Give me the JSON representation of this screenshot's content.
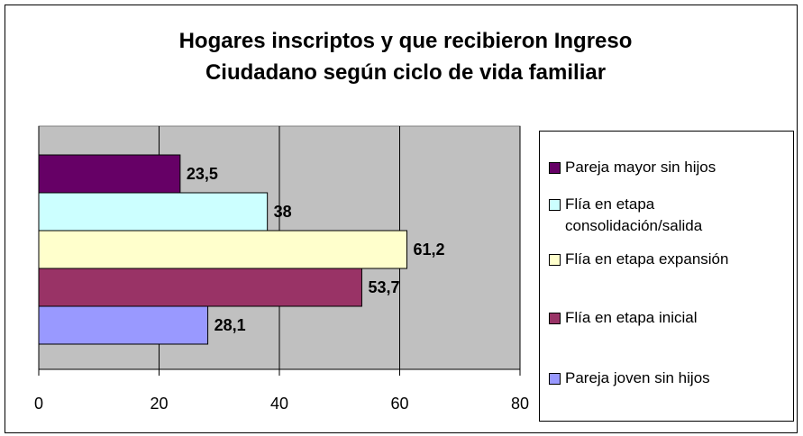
{
  "chart_data": {
    "type": "bar",
    "orientation": "horizontal",
    "title": "Hogares inscriptos y que recibieron Ingreso Ciudadano según ciclo de vida familiar",
    "series": [
      {
        "name": "Pareja mayor sin hijos",
        "color": "#660066",
        "values": [
          23.5
        ],
        "value_labels": [
          "23,5"
        ]
      },
      {
        "name": "Flía en etapa consolidación/salida",
        "color": "#CCFFFF",
        "values": [
          38
        ],
        "value_labels": [
          "38"
        ]
      },
      {
        "name": "Flía en etapa expansión",
        "color": "#FFFFCC",
        "values": [
          61.2
        ],
        "value_labels": [
          "61,2"
        ]
      },
      {
        "name": "Flía en etapa inicial",
        "color": "#993366",
        "values": [
          53.7
        ],
        "value_labels": [
          "53,7"
        ]
      },
      {
        "name": "Pareja joven sin hijos",
        "color": "#9999FF",
        "values": [
          28.1
        ],
        "value_labels": [
          "28,1"
        ]
      }
    ],
    "xlim": [
      0,
      80
    ],
    "xticks": [
      0,
      20,
      40,
      60,
      80
    ],
    "grid": true,
    "legend": "right"
  }
}
